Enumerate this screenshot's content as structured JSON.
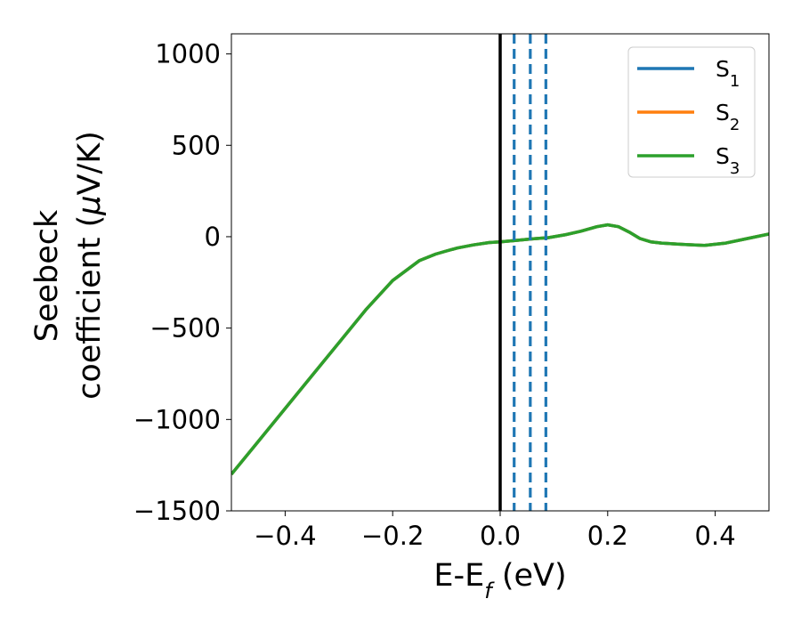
{
  "chart_data": {
    "type": "line",
    "xlabel": "E-E",
    "xlabel_sub": "f",
    "xlabel_unit": " (eV)",
    "ylabel_line1": "Seebeck",
    "ylabel_line2": "coefficient  (",
    "ylabel_mu": "μ",
    "ylabel_unit": "V/K)",
    "xlim": [
      -0.5,
      0.5
    ],
    "ylim": [
      -1500,
      1110
    ],
    "xticks": [
      -0.4,
      -0.2,
      0.0,
      0.2,
      0.4
    ],
    "xtick_labels": [
      "−0.4",
      "−0.2",
      "0.0",
      "0.2",
      "0.4"
    ],
    "yticks": [
      -1500,
      -1000,
      -500,
      0,
      500,
      1000
    ],
    "ytick_labels": [
      "−1500",
      "−1000",
      "−500",
      "0",
      "500",
      "1000"
    ],
    "grid": false,
    "legend_position": "top-right",
    "x": [
      -0.5,
      -0.45,
      -0.4,
      -0.35,
      -0.3,
      -0.25,
      -0.2,
      -0.15,
      -0.12,
      -0.1,
      -0.08,
      -0.05,
      -0.02,
      0.0,
      0.03,
      0.06,
      0.09,
      0.12,
      0.15,
      0.18,
      0.2,
      0.22,
      0.24,
      0.26,
      0.28,
      0.3,
      0.34,
      0.38,
      0.42,
      0.46,
      0.5
    ],
    "series": [
      {
        "name": "S",
        "sub": "1",
        "color": "#1f77b4",
        "values": [
          -1300,
          -1120,
          -940,
          -760,
          -580,
          -400,
          -240,
          -130,
          -95,
          -78,
          -62,
          -45,
          -32,
          -28,
          -20,
          -12,
          -5,
          10,
          30,
          55,
          65,
          55,
          25,
          -10,
          -28,
          -35,
          -42,
          -48,
          -35,
          -10,
          15
        ]
      },
      {
        "name": "S",
        "sub": "2",
        "color": "#ff7f0e",
        "values": [
          -1300,
          -1120,
          -940,
          -760,
          -580,
          -400,
          -240,
          -130,
          -95,
          -78,
          -62,
          -45,
          -32,
          -28,
          -20,
          -12,
          -5,
          10,
          30,
          55,
          65,
          55,
          25,
          -10,
          -28,
          -35,
          -42,
          -48,
          -35,
          -10,
          15
        ]
      },
      {
        "name": "S",
        "sub": "3",
        "color": "#2ca02c",
        "values": [
          -1300,
          -1120,
          -940,
          -760,
          -580,
          -400,
          -240,
          -130,
          -95,
          -78,
          -62,
          -45,
          -32,
          -28,
          -20,
          -12,
          -5,
          10,
          30,
          55,
          65,
          55,
          25,
          -10,
          -28,
          -35,
          -42,
          -48,
          -35,
          -10,
          15
        ]
      }
    ],
    "vertical_lines": [
      {
        "x": 0.0,
        "style": "solid",
        "color": "#000000"
      },
      {
        "x": 0.026,
        "style": "dashed",
        "color": "#1f77b4"
      },
      {
        "x": 0.056,
        "style": "dashed",
        "color": "#1f77b4"
      },
      {
        "x": 0.085,
        "style": "dashed",
        "color": "#1f77b4"
      }
    ]
  }
}
